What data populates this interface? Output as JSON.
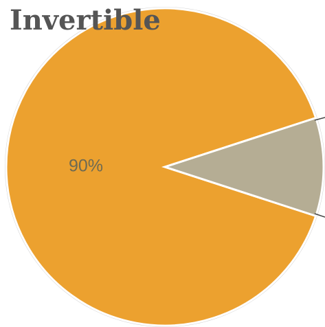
{
  "chart_data": {
    "type": "pie",
    "title": "Invertible",
    "series": [
      {
        "color": "#eca12f",
        "values": [
          90,
          10
        ]
      }
    ],
    "colors": [
      "#eca12f",
      "#b5ad94"
    ],
    "value_labels": [
      "90%",
      null
    ]
  }
}
